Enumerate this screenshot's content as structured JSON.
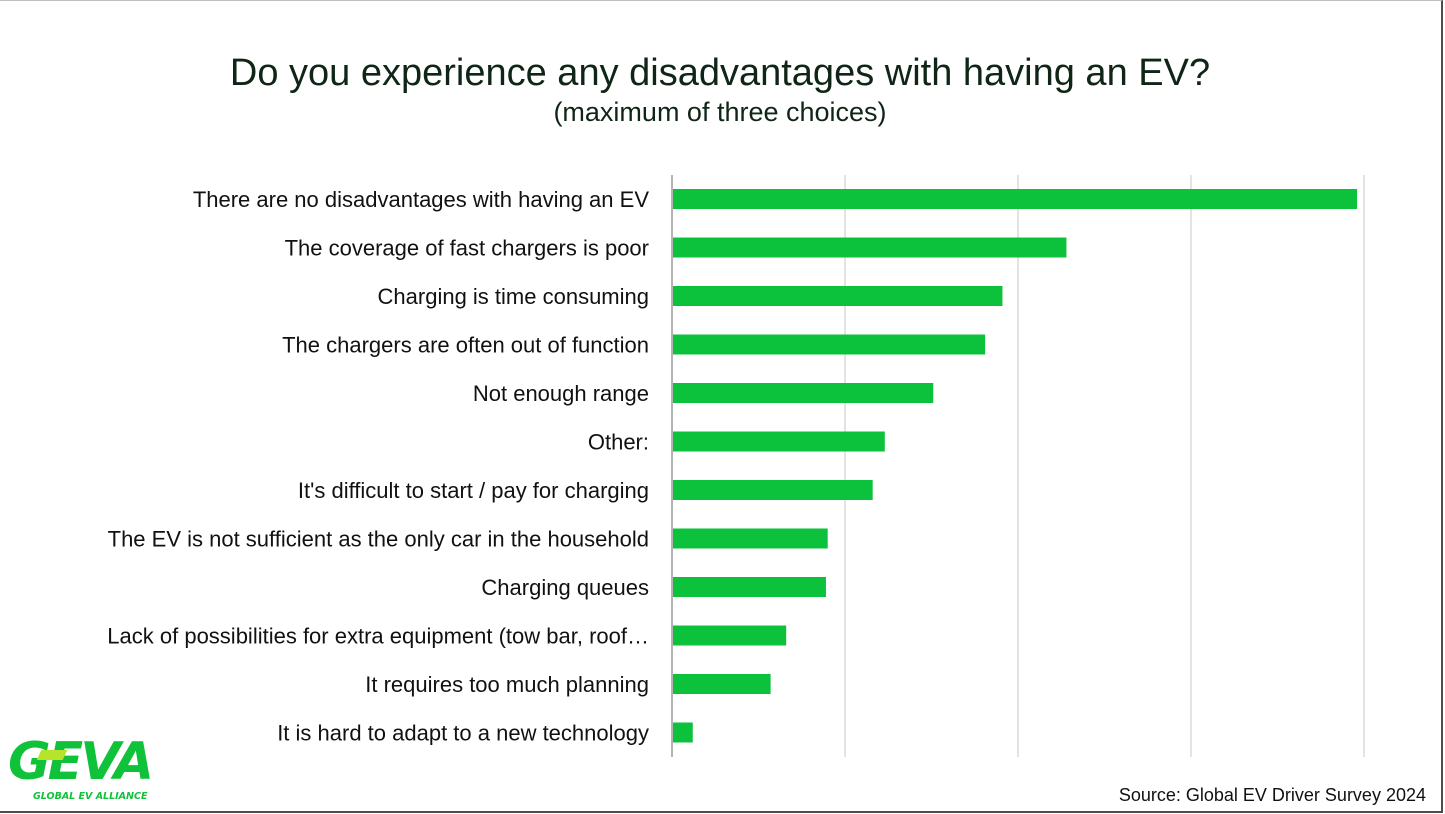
{
  "brand": {
    "logo_text": "GEVA",
    "logo_tagline": "GLOBAL EV ALLIANCE",
    "colors": {
      "bar": "#0cc13c",
      "logo": "#10c23a",
      "logo_accent": "#b6e32b"
    }
  },
  "source": "Source: Global EV Driver Survey 2024",
  "chart_data": {
    "type": "bar",
    "orientation": "horizontal",
    "title": "Do you experience any disadvantages with having an EV?",
    "subtitle": "(maximum of three choices)",
    "categories": [
      "There are no disadvantages with having an EV",
      "The coverage of fast chargers is poor",
      "Charging is time consuming",
      "The chargers are often out of function",
      "Not enough range",
      "Other:",
      "It's difficult to start / pay for charging",
      "The EV is not sufficient as the only car in the household",
      "Charging queues",
      "Lack of possibilities for extra equipment (tow bar, roof…",
      "It requires too much planning",
      "It is hard to adapt to a new technology"
    ],
    "values": [
      39.6,
      22.8,
      19.1,
      18.1,
      15.1,
      12.3,
      11.6,
      9.0,
      8.9,
      6.6,
      5.7,
      1.2
    ],
    "xlim": [
      0,
      40
    ],
    "grid": true,
    "x_tick_labels_shown": false,
    "legend": "none"
  }
}
